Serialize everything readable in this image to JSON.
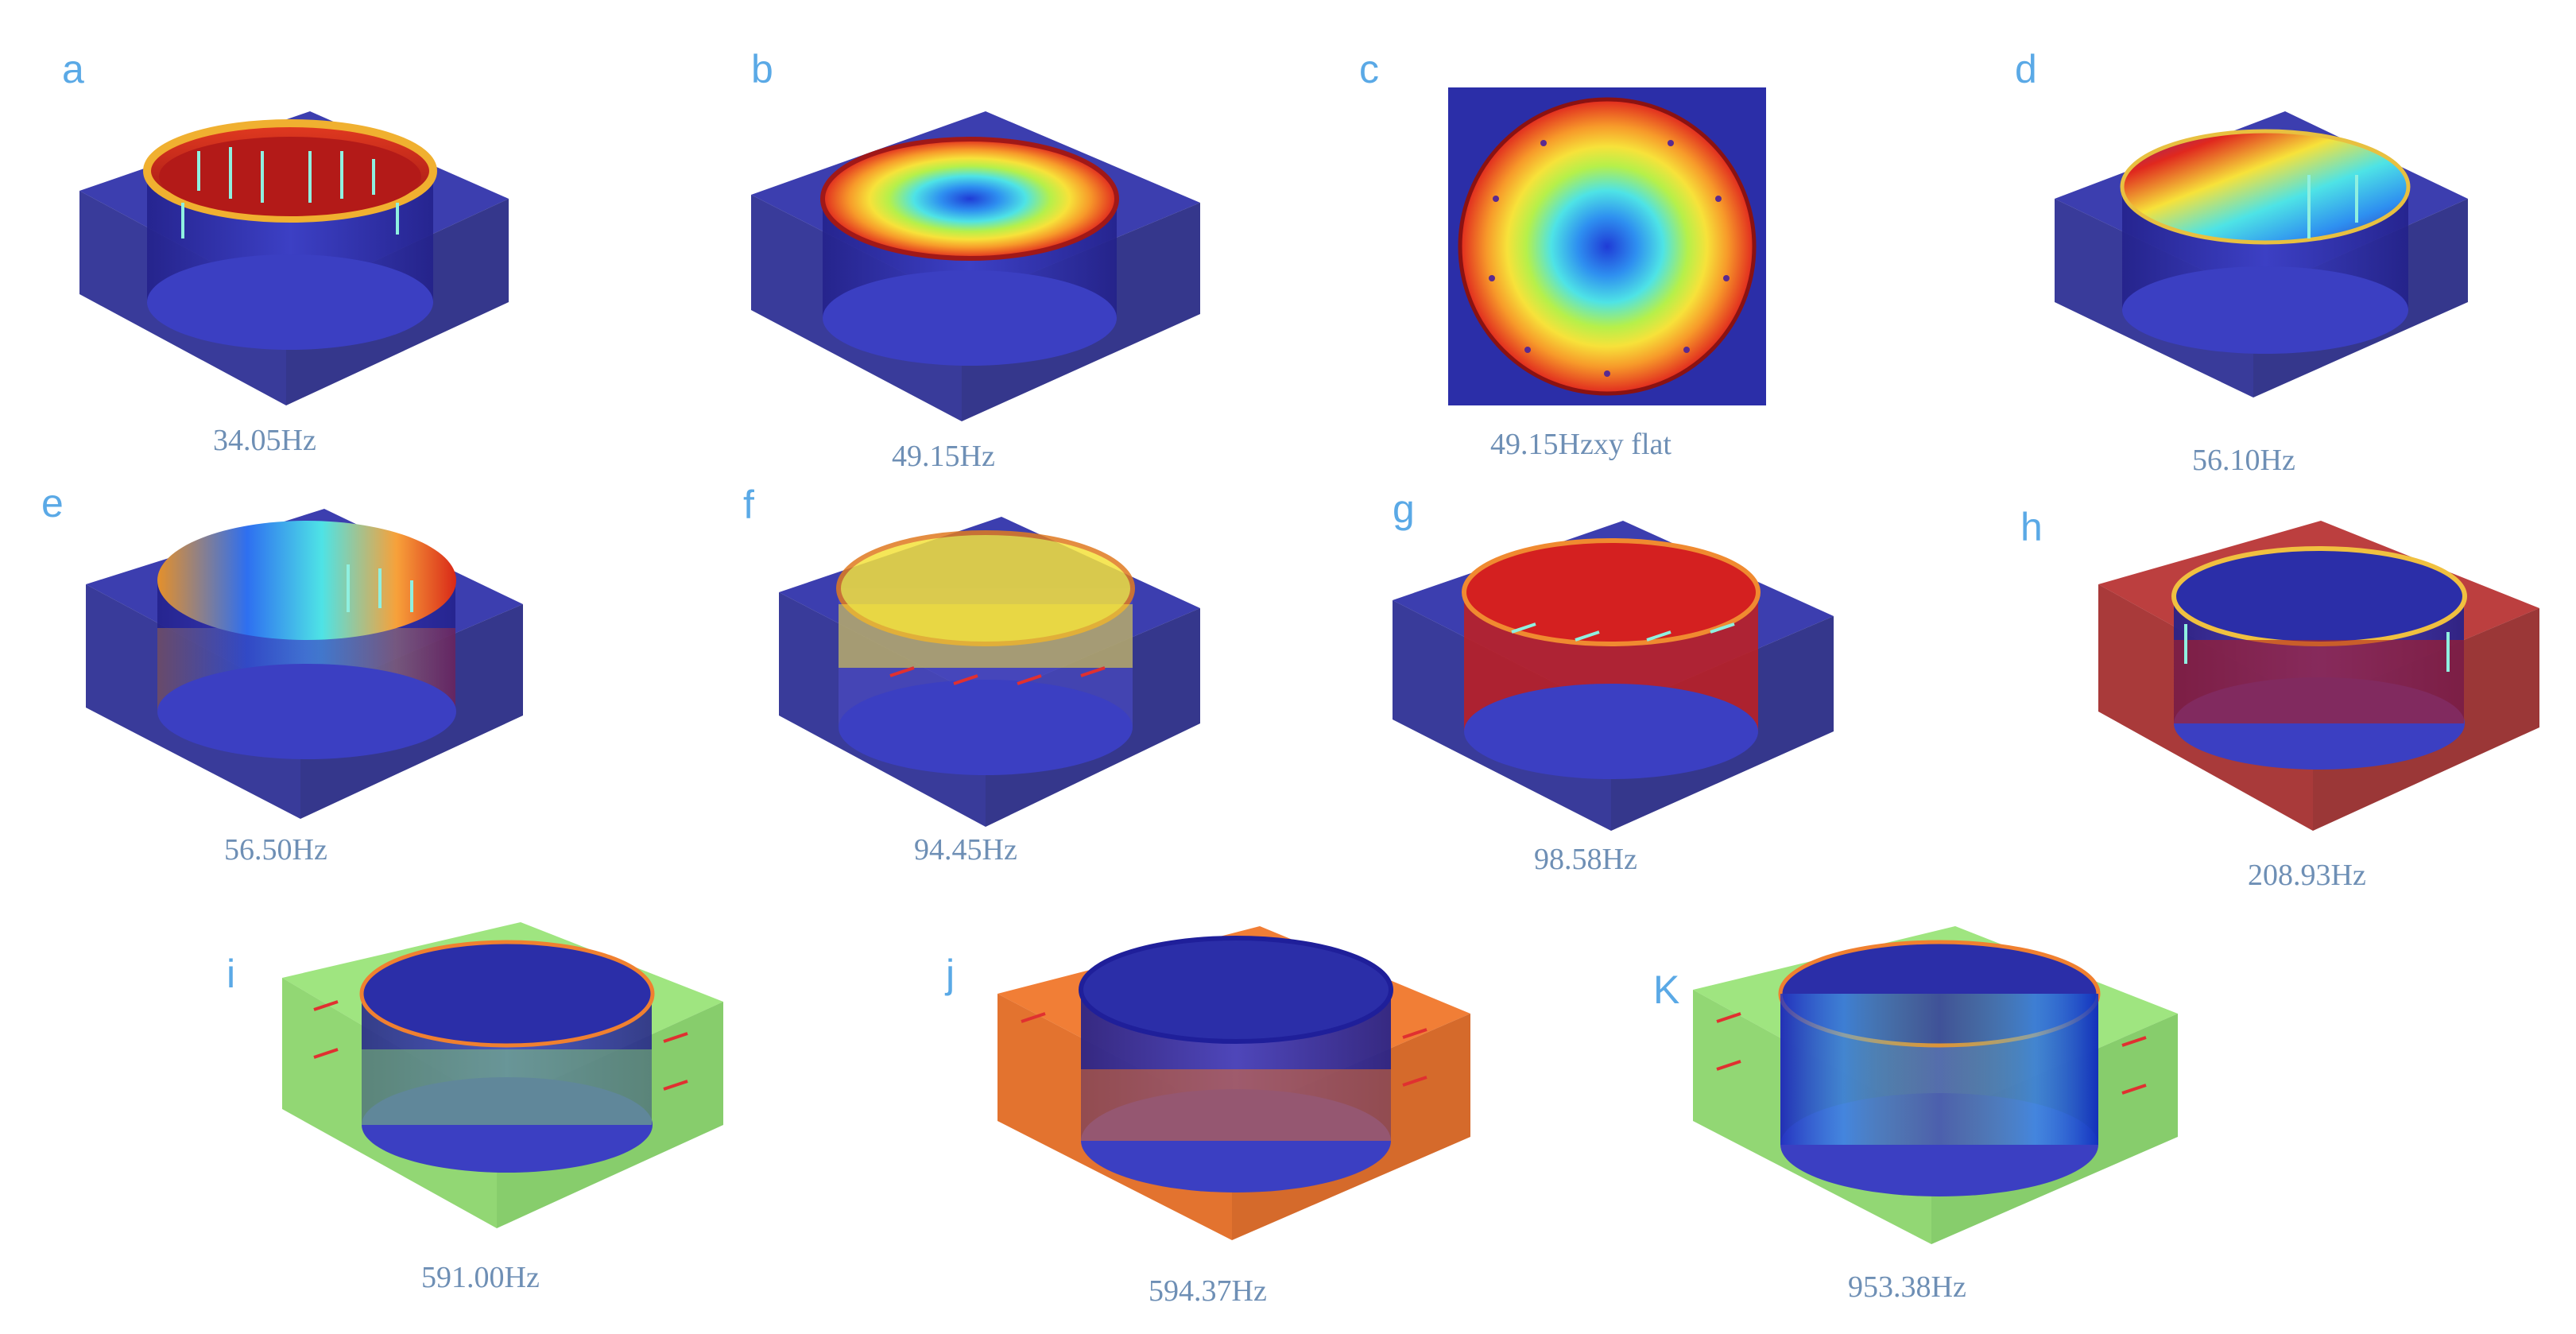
{
  "panels": [
    {
      "letter": "a",
      "caption": "34.05Hz"
    },
    {
      "letter": "b",
      "caption": "49.15Hz"
    },
    {
      "letter": "c",
      "caption": "49.15Hzxy flat"
    },
    {
      "letter": "d",
      "caption": "56.10Hz"
    },
    {
      "letter": "e",
      "caption": "56.50Hz"
    },
    {
      "letter": "f",
      "caption": "94.45Hz"
    },
    {
      "letter": "g",
      "caption": "98.58Hz"
    },
    {
      "letter": "h",
      "caption": "208.93Hz"
    },
    {
      "letter": "i",
      "caption": "591.00Hz"
    },
    {
      "letter": "j",
      "caption": "594.37Hz"
    },
    {
      "letter": "K",
      "caption": "953.38Hz"
    }
  ],
  "colors": {
    "label_blue": "#5aa9e6",
    "caption_gray_blue": "#6e8fb5",
    "box_navy": "#2b2ea8",
    "box_red": "#b01d1d",
    "box_green": "#8ee06a",
    "box_orange": "#f07020"
  }
}
